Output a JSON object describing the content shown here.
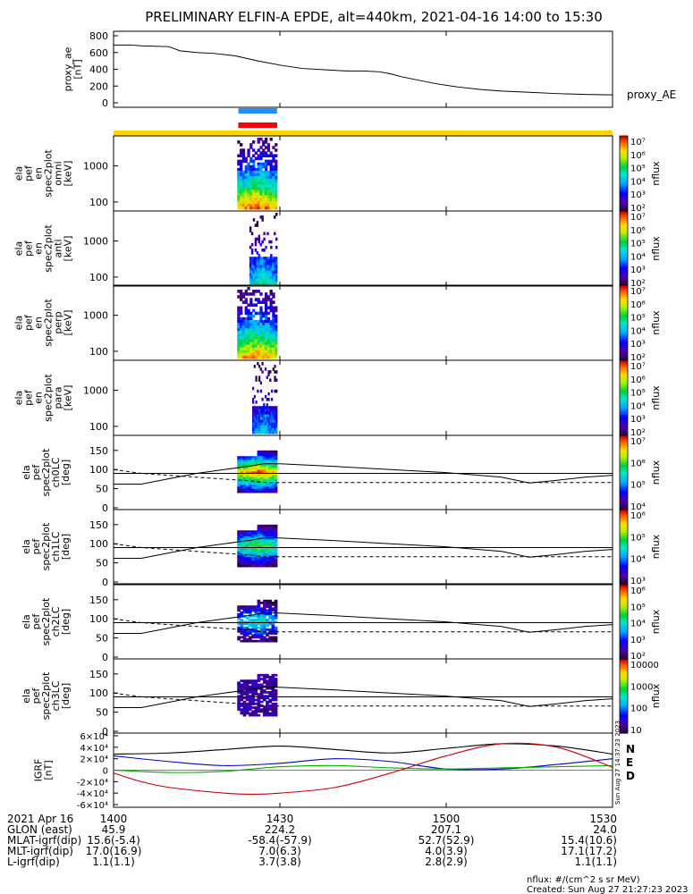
{
  "title": "PRELIMINARY ELFIN-A EPDE, alt=440km, 2021-04-16 14:00 to 15:30",
  "chart_data": [
    {
      "id": "proxy_ae",
      "type": "line",
      "ylabel": "proxy_ae [nT]",
      "legend": "proxy_AE",
      "ylim": [
        0,
        800
      ],
      "yticks": [
        "800",
        "600",
        "400",
        "200",
        "0"
      ],
      "x_minutes_after_1400": [
        0,
        3,
        5,
        10,
        12,
        15,
        18,
        22,
        26,
        30,
        34,
        38,
        42,
        45,
        48,
        50,
        52,
        55,
        58,
        62,
        66,
        70,
        75,
        80,
        85,
        90
      ],
      "values": [
        690,
        690,
        680,
        670,
        620,
        600,
        590,
        560,
        500,
        450,
        410,
        395,
        380,
        380,
        370,
        345,
        310,
        270,
        230,
        190,
        160,
        140,
        125,
        110,
        100,
        95
      ]
    },
    {
      "id": "flags",
      "type": "bar",
      "description": "science zone / data flags",
      "bars": [
        {
          "color": "#1e90ff",
          "x_start_min": 22.5,
          "x_end_min": 29.5
        },
        {
          "color": "#ff0000",
          "x_start_min": 22.5,
          "x_end_min": 29.5
        },
        {
          "color": "#ffd400",
          "x_start_min": 0,
          "x_end_min": 90
        }
      ]
    },
    {
      "id": "en_spectra",
      "type": "heatmap",
      "panels": [
        {
          "label": [
            "ela",
            "pef",
            "en",
            "spec2plot",
            "omni",
            "[keV]"
          ],
          "yticks": [
            "1000",
            "100"
          ],
          "zticks": [
            "10⁷",
            "10⁶",
            "10⁵",
            "10⁴",
            "10³",
            "10²"
          ],
          "x_range_min": [
            22.3,
            29.5
          ],
          "intensity": 0.95
        },
        {
          "label": [
            "ela",
            "pef",
            "en",
            "spec2plot",
            "anti",
            "[keV]"
          ],
          "yticks": [
            "1000",
            "100"
          ],
          "zticks": [
            "10⁷",
            "10⁶",
            "10⁵",
            "10⁴",
            "10³",
            "10²"
          ],
          "x_range_min": [
            24.5,
            29.5
          ],
          "intensity": 0.55
        },
        {
          "label": [
            "ela",
            "pef",
            "en",
            "spec2plot",
            "perp",
            "[keV]"
          ],
          "yticks": [
            "1000",
            "100"
          ],
          "zticks": [
            "10⁷",
            "10⁶",
            "10⁵",
            "10⁴",
            "10³",
            "10²"
          ],
          "x_range_min": [
            22.3,
            29.5
          ],
          "intensity": 0.9
        },
        {
          "label": [
            "ela",
            "pef",
            "en",
            "spec2plot",
            "para",
            "[keV]"
          ],
          "yticks": [
            "1000",
            "100"
          ],
          "zticks": [
            "10⁷",
            "10⁶",
            "10⁵",
            "10⁴",
            "10³",
            "10²"
          ],
          "x_range_min": [
            25,
            29.5
          ],
          "intensity": 0.45
        }
      ],
      "zlabel": "nflux"
    },
    {
      "id": "pa_spectra",
      "type": "heatmap",
      "ylim": [
        0,
        180
      ],
      "panels": [
        {
          "label": [
            "ela",
            "pef",
            "spec2plot",
            "ch0LC",
            "[deg]"
          ],
          "yticks": [
            "150",
            "100",
            "50",
            "0"
          ],
          "zticks": [
            "10⁷",
            "10⁶",
            "10⁵",
            "10⁴"
          ],
          "intensity": 1.0
        },
        {
          "label": [
            "ela",
            "pef",
            "spec2plot",
            "ch1LC",
            "[deg]"
          ],
          "yticks": [
            "150",
            "100",
            "50",
            "0"
          ],
          "zticks": [
            "10⁶",
            "10⁵",
            "10⁴",
            "10³"
          ],
          "intensity": 0.7
        },
        {
          "label": [
            "ela",
            "pef",
            "spec2plot",
            "ch2LC",
            "[deg]"
          ],
          "yticks": [
            "150",
            "100",
            "50",
            "0"
          ],
          "zticks": [
            "10⁶",
            "10⁵",
            "10⁴",
            "10³",
            "10²"
          ],
          "intensity": 0.55
        },
        {
          "label": [
            "ela",
            "pef",
            "spec2plot",
            "ch3LC",
            "[deg]"
          ],
          "yticks": [
            "150",
            "100",
            "50",
            "0"
          ],
          "zticks": [
            "10000",
            "1000",
            "100",
            "10"
          ],
          "intensity": 0.2
        }
      ],
      "zlabel": "nflux",
      "solid_curve_x_min": [
        0,
        5,
        15,
        25,
        27,
        30,
        40,
        50,
        60,
        70,
        75,
        80,
        85,
        90
      ],
      "solid_curve_deg": [
        90,
        90,
        90,
        90,
        90,
        90,
        90,
        90,
        90,
        90,
        90,
        90,
        90,
        90
      ],
      "lc_solid_deg": [
        62,
        62,
        90,
        110,
        115,
        115,
        108,
        100,
        92,
        80,
        65,
        72,
        80,
        85
      ],
      "lc_dashed_deg": [
        100,
        90,
        80,
        70,
        66,
        66,
        66,
        66,
        66,
        66,
        66,
        66,
        66,
        66
      ]
    },
    {
      "id": "igrf",
      "type": "line",
      "ylabel": "IGRF [nT]",
      "ylim": [
        -60000,
        60000
      ],
      "yticks": [
        "6×10⁴",
        "4×10⁴",
        "2×10⁴",
        "0",
        "-2×10⁴",
        "-4×10⁴",
        "-6×10⁴"
      ],
      "legend": [
        "N",
        "E",
        "D"
      ],
      "series": [
        {
          "name": "N",
          "color": "#000000",
          "x_min": [
            0,
            10,
            20,
            30,
            40,
            50,
            60,
            70,
            80,
            90
          ],
          "values": [
            28000,
            30000,
            36000,
            42000,
            36000,
            30000,
            38000,
            46000,
            42000,
            28000
          ]
        },
        {
          "name": "E",
          "color": "#0000cc",
          "x_min": [
            0,
            10,
            20,
            30,
            40,
            50,
            60,
            70,
            80,
            90
          ],
          "values": [
            25000,
            15000,
            8000,
            12000,
            20000,
            15000,
            2000,
            2000,
            10000,
            20000
          ]
        },
        {
          "name": "D",
          "color": "#00aa00",
          "x_min": [
            0,
            10,
            20,
            30,
            40,
            50,
            60,
            70,
            80,
            90
          ],
          "values": [
            0,
            -4000,
            -2000,
            6000,
            8000,
            4000,
            2000,
            4000,
            6000,
            8000
          ]
        },
        {
          "name": "red",
          "color": "#cc0000",
          "x_min": [
            0,
            5,
            10,
            20,
            25,
            30,
            40,
            50,
            60,
            70,
            80,
            90
          ],
          "values": [
            -5000,
            -20000,
            -30000,
            -40000,
            -42000,
            -40000,
            -30000,
            -5000,
            25000,
            46000,
            40000,
            5000
          ]
        }
      ]
    }
  ],
  "footer": {
    "rows": [
      {
        "label": "2021 Apr 16",
        "v": [
          "1400",
          "1430",
          "1500",
          "1530"
        ]
      },
      {
        "label": "GLON (east)",
        "v": [
          "45.9",
          "224.2",
          "207.1",
          "24.0"
        ]
      },
      {
        "label": "MLAT-igrf(dip)",
        "v": [
          "15.6(-5.4)",
          "-58.4(-57.9)",
          "52.7(52.9)",
          "15.4(10.6)"
        ]
      },
      {
        "label": "MLT-igrf(dip)",
        "v": [
          "17.0(16.9)",
          "7.0(6.3)",
          "4.0(3.9)",
          "17.1(17.2)"
        ]
      },
      {
        "label": "L-igrf(dip)",
        "v": [
          "1.1(1.1)",
          "3.7(3.8)",
          "2.8(2.9)",
          "1.1(1.1)"
        ]
      }
    ],
    "units": "nflux: #/(cm^2 s sr MeV)",
    "created": "Created: Sun Aug 27 21:27:23 2023",
    "side_stamp": "Sun Aug 27 14:37:23 2023"
  }
}
